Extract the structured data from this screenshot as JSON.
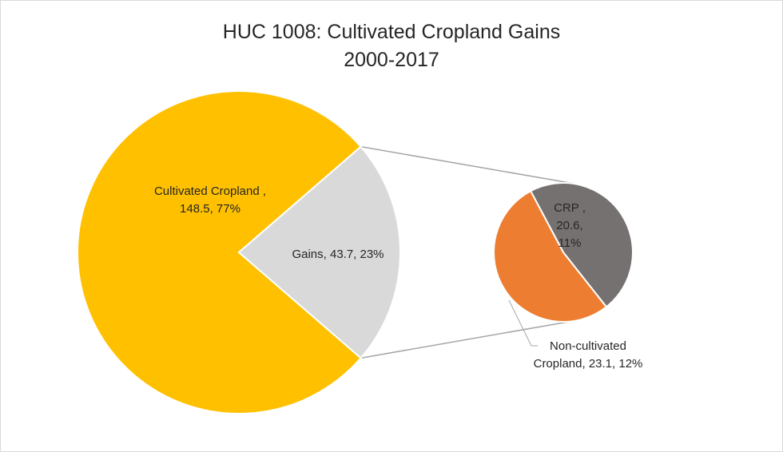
{
  "chart_data": {
    "type": "pie",
    "subtype": "pie-of-pie",
    "title": "HUC 1008: Cultivated Cropland Gains",
    "subtitle": "2000-2017",
    "main_pie": {
      "slices": [
        {
          "name": "Cultivated Cropland ",
          "value": 148.5,
          "percent": 77,
          "color": "#FFC000",
          "label_lines": [
            "Cultivated Cropland ,",
            "148.5, 77%"
          ]
        },
        {
          "name": "Gains",
          "value": 43.7,
          "percent": 23,
          "color": "#D9D9D9",
          "label_lines": [
            "Gains, 43.7, 23%"
          ]
        }
      ]
    },
    "secondary_pie": {
      "slices": [
        {
          "name": "CRP ",
          "value": 20.6,
          "percent": 11,
          "color": "#767171",
          "label_lines": [
            "CRP ,",
            "20.6,",
            "11%"
          ]
        },
        {
          "name": "Non-cultivated Cropland",
          "value": 23.1,
          "percent": 12,
          "color": "#ED7D31",
          "label_lines": [
            "Non-cultivated",
            "Cropland, 23.1, 12%"
          ]
        }
      ]
    },
    "connector_color": "#A6A6A6"
  }
}
